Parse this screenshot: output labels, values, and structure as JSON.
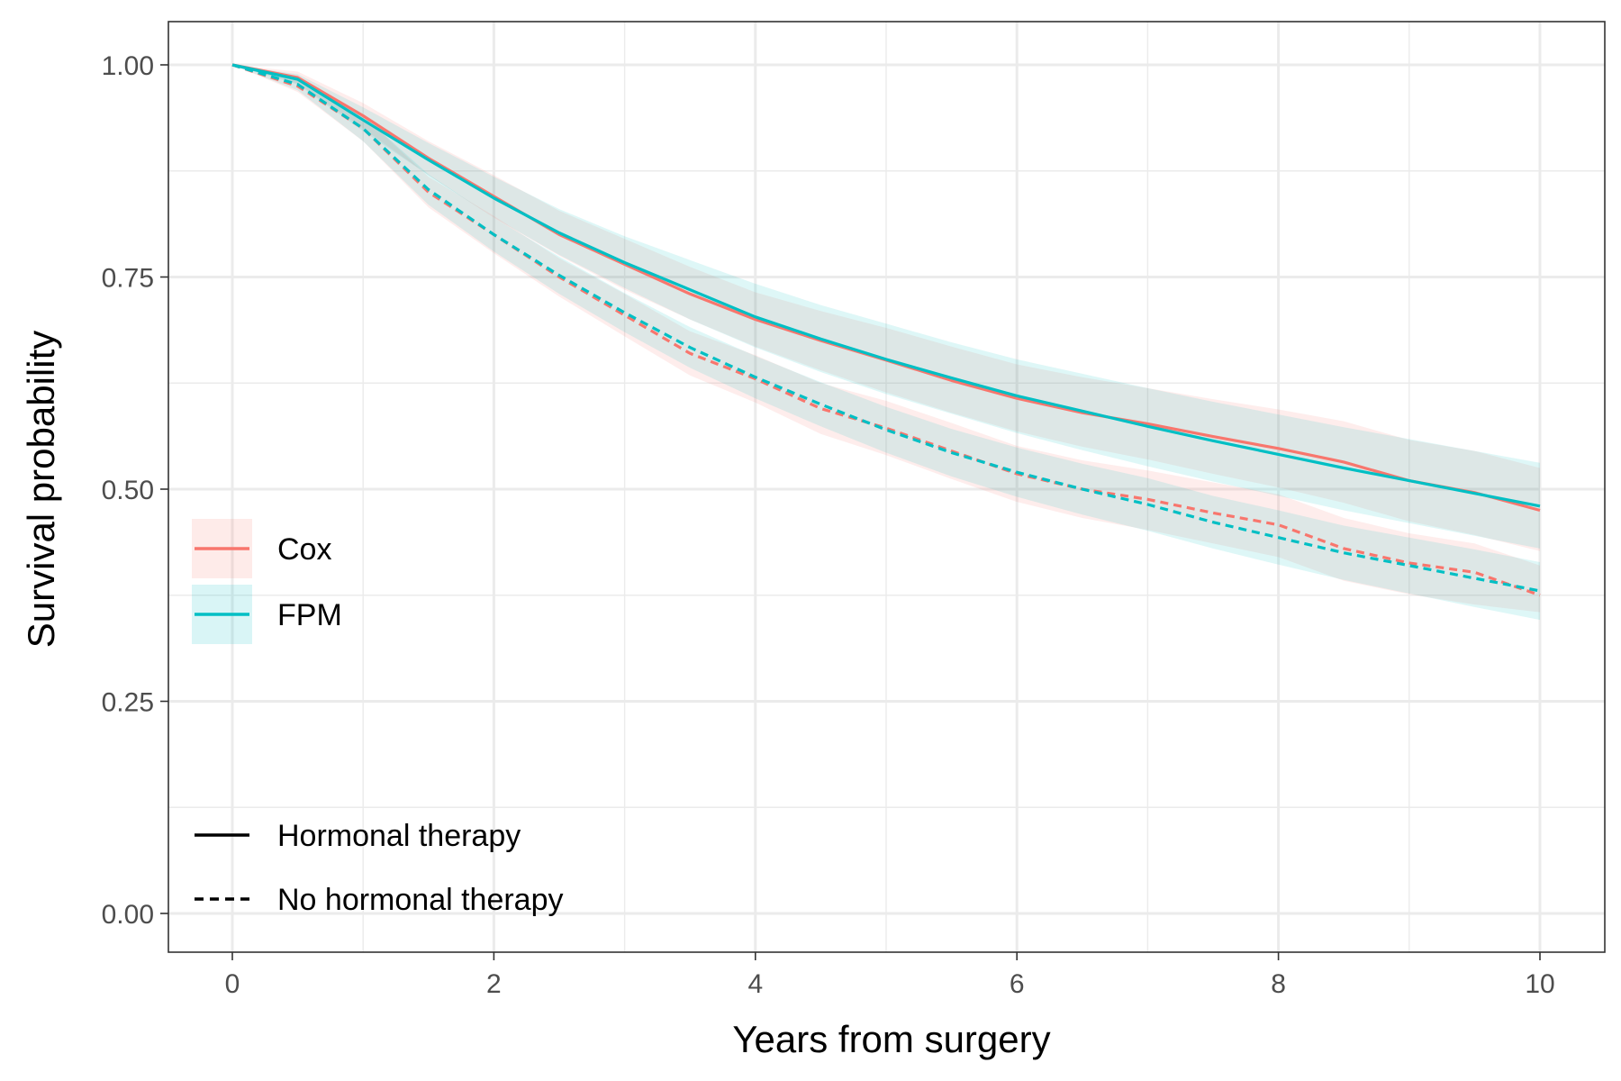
{
  "chart_data": {
    "type": "line",
    "xlabel": "Years from surgery",
    "ylabel": "Survival probability",
    "xlim": [
      -0.5,
      10.5
    ],
    "ylim": [
      -0.047,
      1.047
    ],
    "x_ticks": [
      0,
      2,
      4,
      6,
      8,
      10
    ],
    "x_tick_labels": [
      "0",
      "2",
      "4",
      "6",
      "8",
      "10"
    ],
    "y_ticks": [
      0.0,
      0.25,
      0.5,
      0.75,
      1.0
    ],
    "y_tick_labels": [
      "0.00",
      "0.25",
      "0.50",
      "0.75",
      "1.00"
    ],
    "grid": true,
    "legend": {
      "placement": "left-inside",
      "model_entries": [
        "Cox",
        "FPM"
      ],
      "linetype_entries": [
        "Hormonal therapy",
        "No hormonal therapy"
      ]
    },
    "colors": {
      "Cox": "#F8766D",
      "FPM": "#00BFC4"
    },
    "series": [
      {
        "model": "Cox",
        "group": "Hormonal therapy",
        "linetype": "solid",
        "x": [
          0,
          0.5,
          1,
          1.5,
          2,
          2.5,
          3,
          3.5,
          4,
          4.5,
          5,
          5.5,
          6,
          6.5,
          7,
          7.5,
          8,
          8.5,
          9,
          9.5,
          10
        ],
        "y": [
          1.0,
          0.985,
          0.94,
          0.89,
          0.845,
          0.8,
          0.765,
          0.73,
          0.7,
          0.675,
          0.652,
          0.628,
          0.607,
          0.59,
          0.577,
          0.562,
          0.548,
          0.532,
          0.51,
          0.496,
          0.475
        ],
        "lower": [
          1.0,
          0.978,
          0.925,
          0.87,
          0.82,
          0.775,
          0.735,
          0.7,
          0.668,
          0.64,
          0.614,
          0.59,
          0.568,
          0.55,
          0.535,
          0.518,
          0.502,
          0.484,
          0.462,
          0.446,
          0.427
        ],
        "upper": [
          1.0,
          0.992,
          0.955,
          0.91,
          0.87,
          0.828,
          0.795,
          0.762,
          0.732,
          0.71,
          0.69,
          0.668,
          0.647,
          0.632,
          0.619,
          0.606,
          0.594,
          0.58,
          0.558,
          0.545,
          0.525
        ]
      },
      {
        "model": "FPM",
        "group": "Hormonal therapy",
        "linetype": "solid",
        "x": [
          0,
          0.5,
          1,
          1.5,
          2,
          2.5,
          3,
          3.5,
          4,
          4.5,
          5,
          5.5,
          6,
          6.5,
          7,
          7.5,
          8,
          8.5,
          9,
          9.5,
          10
        ],
        "y": [
          1.0,
          0.983,
          0.935,
          0.888,
          0.843,
          0.802,
          0.767,
          0.735,
          0.703,
          0.677,
          0.653,
          0.631,
          0.61,
          0.592,
          0.574,
          0.557,
          0.541,
          0.525,
          0.51,
          0.495,
          0.48
        ],
        "lower": [
          1.0,
          0.977,
          0.922,
          0.87,
          0.82,
          0.776,
          0.737,
          0.7,
          0.667,
          0.638,
          0.612,
          0.589,
          0.566,
          0.546,
          0.527,
          0.509,
          0.492,
          0.475,
          0.46,
          0.445,
          0.43
        ],
        "upper": [
          1.0,
          0.989,
          0.95,
          0.908,
          0.868,
          0.83,
          0.798,
          0.77,
          0.742,
          0.717,
          0.695,
          0.673,
          0.653,
          0.636,
          0.619,
          0.603,
          0.588,
          0.573,
          0.559,
          0.545,
          0.531
        ]
      },
      {
        "model": "Cox",
        "group": "No hormonal therapy",
        "linetype": "dashed",
        "x": [
          0,
          0.5,
          1,
          1.5,
          2,
          2.5,
          3,
          3.5,
          4,
          4.5,
          5,
          5.5,
          6,
          6.5,
          7,
          7.5,
          8,
          8.5,
          9,
          9.5,
          10
        ],
        "y": [
          1.0,
          0.975,
          0.925,
          0.85,
          0.8,
          0.75,
          0.705,
          0.66,
          0.63,
          0.595,
          0.572,
          0.545,
          0.518,
          0.5,
          0.488,
          0.472,
          0.458,
          0.43,
          0.413,
          0.402,
          0.375
        ],
        "lower": [
          1.0,
          0.968,
          0.91,
          0.832,
          0.778,
          0.727,
          0.68,
          0.634,
          0.602,
          0.565,
          0.54,
          0.512,
          0.485,
          0.466,
          0.452,
          0.436,
          0.42,
          0.392,
          0.376,
          0.364,
          0.355
        ],
        "upper": [
          1.0,
          0.982,
          0.94,
          0.868,
          0.822,
          0.772,
          0.73,
          0.686,
          0.658,
          0.625,
          0.604,
          0.578,
          0.551,
          0.534,
          0.522,
          0.508,
          0.494,
          0.466,
          0.448,
          0.436,
          0.41
        ]
      },
      {
        "model": "FPM",
        "group": "No hormonal therapy",
        "linetype": "dashed",
        "x": [
          0,
          0.5,
          1,
          1.5,
          2,
          2.5,
          3,
          3.5,
          4,
          4.5,
          5,
          5.5,
          6,
          6.5,
          7,
          7.5,
          8,
          8.5,
          9,
          9.5,
          10
        ],
        "y": [
          1.0,
          0.977,
          0.925,
          0.853,
          0.8,
          0.752,
          0.708,
          0.667,
          0.632,
          0.6,
          0.57,
          0.543,
          0.52,
          0.5,
          0.482,
          0.461,
          0.443,
          0.425,
          0.41,
          0.395,
          0.38
        ],
        "lower": [
          1.0,
          0.97,
          0.91,
          0.835,
          0.78,
          0.73,
          0.685,
          0.643,
          0.607,
          0.574,
          0.543,
          0.515,
          0.491,
          0.47,
          0.451,
          0.43,
          0.411,
          0.393,
          0.377,
          0.361,
          0.346
        ],
        "upper": [
          1.0,
          0.984,
          0.94,
          0.871,
          0.82,
          0.774,
          0.731,
          0.691,
          0.657,
          0.626,
          0.597,
          0.571,
          0.549,
          0.53,
          0.513,
          0.492,
          0.475,
          0.457,
          0.443,
          0.429,
          0.414
        ]
      }
    ]
  }
}
